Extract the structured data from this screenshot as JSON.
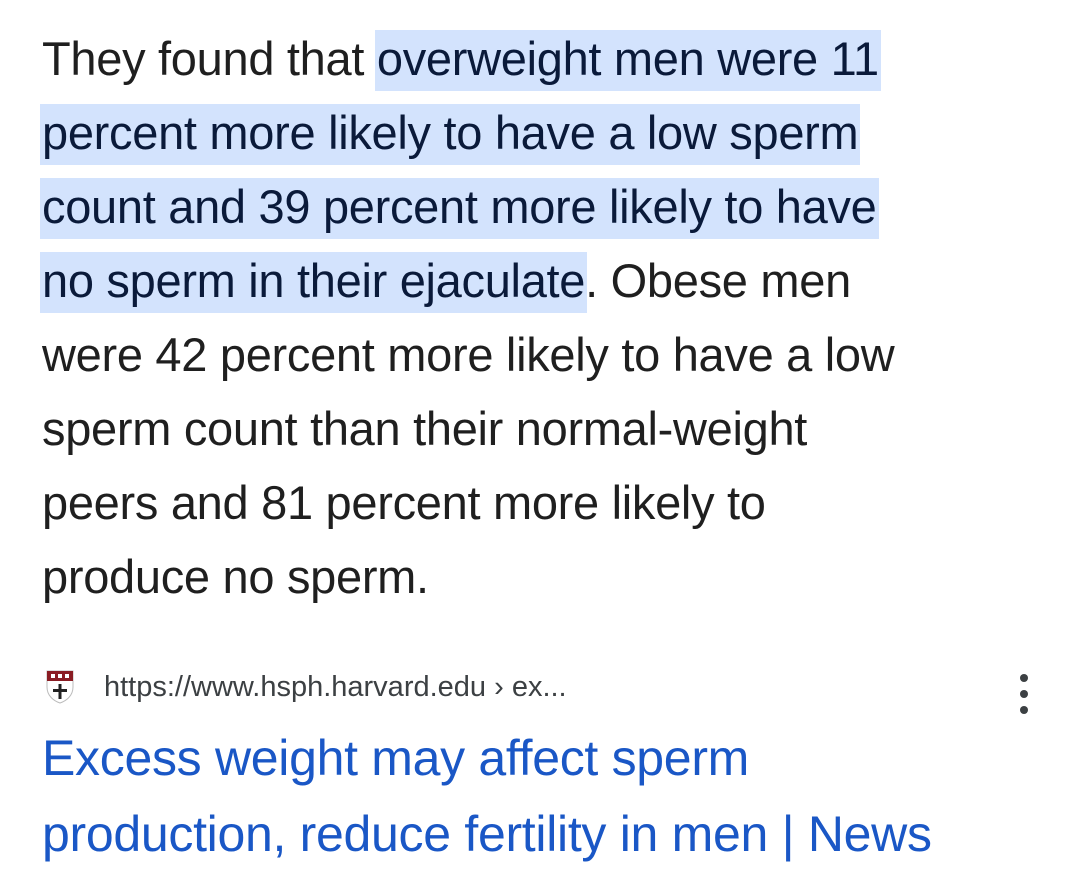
{
  "snippet": {
    "lines": [
      {
        "pre": "They found that ",
        "hl": "overweight men were 11",
        "post": ""
      },
      {
        "pre": "",
        "hl": "percent more likely to have a low sperm",
        "post": ""
      },
      {
        "pre": "",
        "hl": "count and 39 percent more likely to have",
        "post": ""
      },
      {
        "pre": "",
        "hl": "no sperm in their ejaculate",
        "post": ". Obese men"
      },
      {
        "pre": "were 42 percent more likely to have a low",
        "hl": "",
        "post": ""
      },
      {
        "pre": "sperm count than their normal-weight",
        "hl": "",
        "post": ""
      },
      {
        "pre": "peers and 81 percent more likely to",
        "hl": "",
        "post": ""
      },
      {
        "pre": "produce no sperm.",
        "hl": "",
        "post": ""
      }
    ]
  },
  "source": {
    "favicon": "harvard-shield-icon",
    "url": "https://www.hsph.harvard.edu › ex...",
    "more_icon": "more-vert-icon"
  },
  "result": {
    "title_lines": [
      "Excess weight may affect sperm",
      "production, reduce fertility in men | News"
    ]
  },
  "colors": {
    "highlight": "#d3e3fd",
    "link": "#1a57c6",
    "text": "#1f1f1f"
  }
}
